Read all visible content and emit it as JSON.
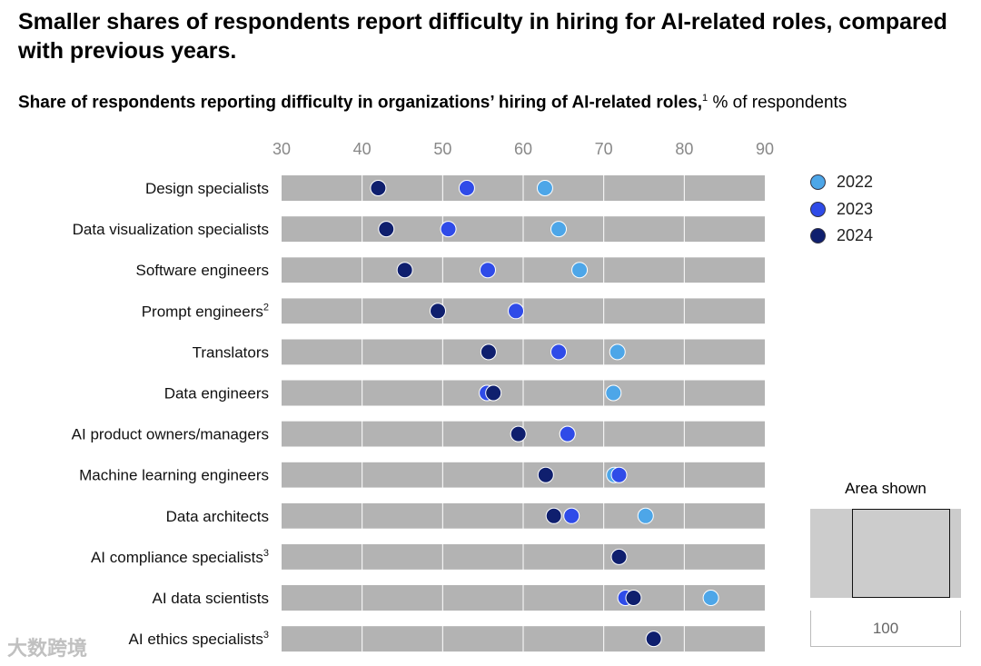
{
  "title": "Smaller shares of respondents report difficulty in hiring for AI-related roles, compared with previous years.",
  "watermark": "大数跨境",
  "chart_data": {
    "type": "scatter",
    "subtitle": "Share of respondents reporting difficulty in organizations’ hiring of AI-related roles,",
    "subtitle_note": "1",
    "unit": "% of respondents",
    "xlim": [
      30,
      90
    ],
    "xticks": [
      "30",
      "40",
      "50",
      "60",
      "70",
      "80",
      "90"
    ],
    "categories": [
      "Design specialists",
      "Data visualization specialists",
      "Software engineers",
      "Prompt engineers",
      "Translators",
      "Data engineers",
      "AI product owners/managers",
      "Machine learning engineers",
      "Data architects",
      "AI compliance specialists",
      "AI data scientists",
      "AI ethics specialists"
    ],
    "category_notes": [
      "",
      "",
      "",
      "2",
      "",
      "",
      "",
      "",
      "",
      "3",
      "",
      "3"
    ],
    "series": [
      {
        "name": "2022",
        "color": "#4da6e8",
        "values": [
          62.7,
          64.4,
          67,
          null,
          71.7,
          71.2,
          65.5,
          71.3,
          75.2,
          null,
          83.3,
          null
        ]
      },
      {
        "name": "2023",
        "color": "#2f4be8",
        "values": [
          53,
          50.7,
          55.6,
          59.1,
          64.4,
          55.5,
          65.5,
          71.9,
          66,
          null,
          72.7,
          null
        ]
      },
      {
        "name": "2024",
        "color": "#0f1f6e",
        "values": [
          42,
          43,
          45.3,
          49.4,
          55.7,
          56.3,
          59.4,
          62.8,
          63.8,
          71.9,
          73.7,
          76.2
        ]
      }
    ],
    "inset": {
      "label": "Area shown",
      "scale_label": "100"
    }
  }
}
